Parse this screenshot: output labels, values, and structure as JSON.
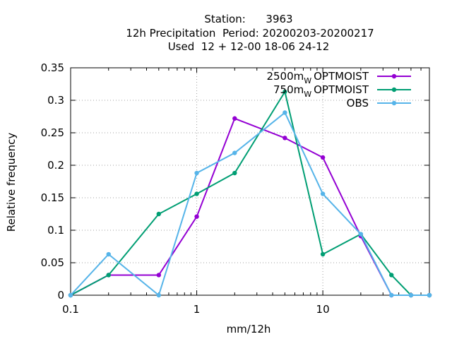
{
  "chart_data": {
    "type": "line",
    "title_lines": [
      "Station:      3963",
      "12h Precipitation  Period: 20200203-20200217",
      "Used  12 + 12-00 18-06 24-12"
    ],
    "xlabel": "mm/12h",
    "ylabel": "Relative frequency",
    "x_scale": "log",
    "xlim": [
      0.1,
      70
    ],
    "ylim": [
      0,
      0.35
    ],
    "x_ticks": [
      {
        "value": 0.1,
        "label": "0.1"
      },
      {
        "value": 1,
        "label": "1"
      },
      {
        "value": 10,
        "label": "10"
      }
    ],
    "y_ticks": [
      {
        "value": 0,
        "label": "0"
      },
      {
        "value": 0.05,
        "label": "0.05"
      },
      {
        "value": 0.1,
        "label": "0.1"
      },
      {
        "value": 0.15,
        "label": "0.15"
      },
      {
        "value": 0.2,
        "label": "0.2"
      },
      {
        "value": 0.25,
        "label": "0.25"
      },
      {
        "value": 0.3,
        "label": "0.3"
      },
      {
        "value": 0.35,
        "label": "0.35"
      }
    ],
    "grid": true,
    "legend_position": "top-right",
    "series": [
      {
        "name": "2500m",
        "name_sub": "W",
        "name_tail": "OPTMOIST",
        "color": "#9400d3",
        "x": [
          0.1,
          0.2,
          0.5,
          1,
          2,
          5,
          10,
          20,
          35,
          50,
          70
        ],
        "y": [
          0,
          0.031,
          0.031,
          0.121,
          0.272,
          0.242,
          0.212,
          0.091,
          0,
          0,
          0
        ]
      },
      {
        "name": "750m",
        "name_sub": "W",
        "name_tail": "OPTMOIST",
        "color": "#009e73",
        "x": [
          0.1,
          0.2,
          0.5,
          1,
          2,
          5,
          10,
          20,
          35,
          50,
          70
        ],
        "y": [
          0,
          0.031,
          0.125,
          0.156,
          0.188,
          0.313,
          0.063,
          0.094,
          0.031,
          0,
          0
        ]
      },
      {
        "name": "OBS",
        "name_sub": "",
        "name_tail": "",
        "color": "#56b4e9",
        "x": [
          0.1,
          0.2,
          0.5,
          1,
          2,
          5,
          10,
          20,
          35,
          50,
          70
        ],
        "y": [
          0,
          0.063,
          0,
          0.188,
          0.219,
          0.281,
          0.156,
          0.094,
          0,
          0,
          0
        ]
      }
    ]
  }
}
